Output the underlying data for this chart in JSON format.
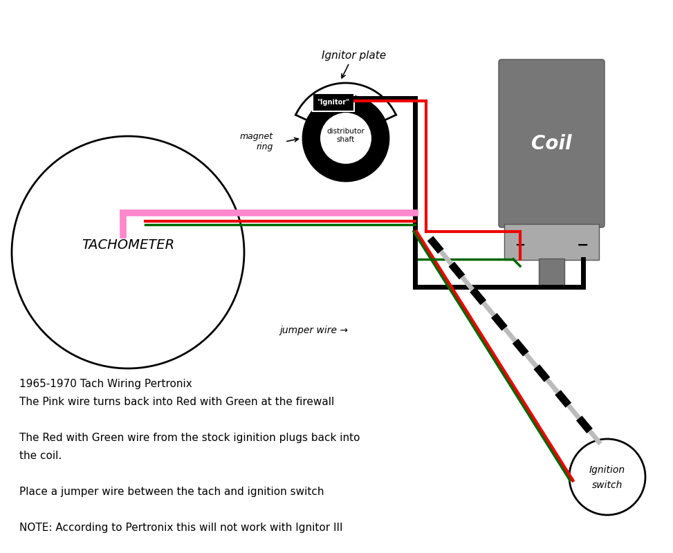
{
  "bg_color": "#ffffff",
  "annotation_lines": [
    "1965-1970 Tach Wiring Pertronix",
    "The Pink wire turns back into Red with Green at the firewall",
    "",
    "The Red with Green wire from the stock iginition plugs back into",
    "the coil.",
    "",
    "Place a jumper wire between the tach and ignition switch",
    "",
    "NOTE: According to Pertronix this will not work with Ignitor III"
  ],
  "colors": {
    "black": "#000000",
    "red": "#ee0000",
    "green": "#006600",
    "pink": "#ff88cc",
    "gray_dark": "#555555",
    "gray_mid": "#777777",
    "gray_light": "#aaaaaa",
    "white": "#ffffff",
    "jumper_gap": "#bbbbbb"
  }
}
